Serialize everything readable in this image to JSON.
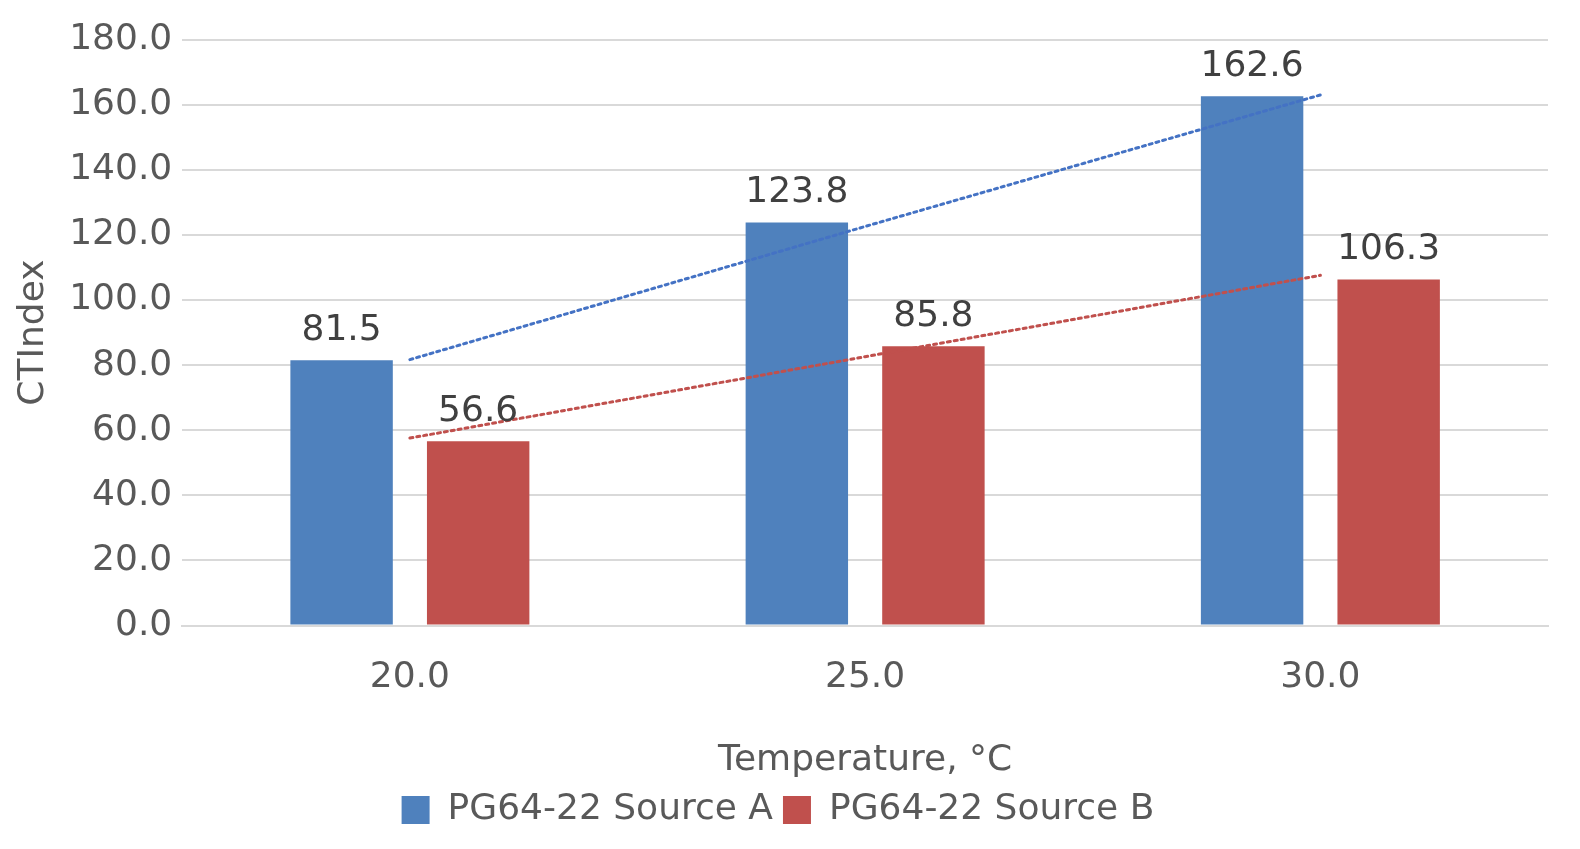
{
  "chart_data": {
    "type": "bar",
    "xlabel": "Temperature, °C",
    "ylabel": "CTIndex",
    "categories": [
      "20.0",
      "25.0",
      "30.0"
    ],
    "series": [
      {
        "name": "PG64-22 Source A",
        "color": "#4f81bd",
        "values": [
          81.5,
          123.8,
          162.6
        ],
        "value_labels": [
          "81.5",
          "123.8",
          "162.6"
        ]
      },
      {
        "name": "PG64-22 Source B",
        "color": "#c0504d",
        "values": [
          56.6,
          85.8,
          106.3
        ],
        "value_labels": [
          "56.6",
          "85.8",
          "106.3"
        ]
      },
      {
        "type": "line",
        "color": "#4472c4",
        "line_style": "dotted",
        "values": [
          81.7,
          122.6,
          163.0
        ]
      },
      {
        "type": "line",
        "color": "#c0504d",
        "line_style": "dotted",
        "values": [
          57.6,
          82.6,
          107.6
        ]
      }
    ],
    "ylim": [
      0,
      180
    ],
    "yticks": [
      {
        "value": 0,
        "label": "0.0"
      },
      {
        "value": 20,
        "label": "20.0"
      },
      {
        "value": 40,
        "label": "40.0"
      },
      {
        "value": 60,
        "label": "60.0"
      },
      {
        "value": 80,
        "label": "80.0"
      },
      {
        "value": 100,
        "label": "100.0"
      },
      {
        "value": 120,
        "label": "120.0"
      },
      {
        "value": 140,
        "label": "140.0"
      },
      {
        "value": 160,
        "label": "160.0"
      },
      {
        "value": 180,
        "label": "180.0"
      }
    ],
    "grid": "y",
    "legend": "bottom",
    "marker": "none"
  }
}
